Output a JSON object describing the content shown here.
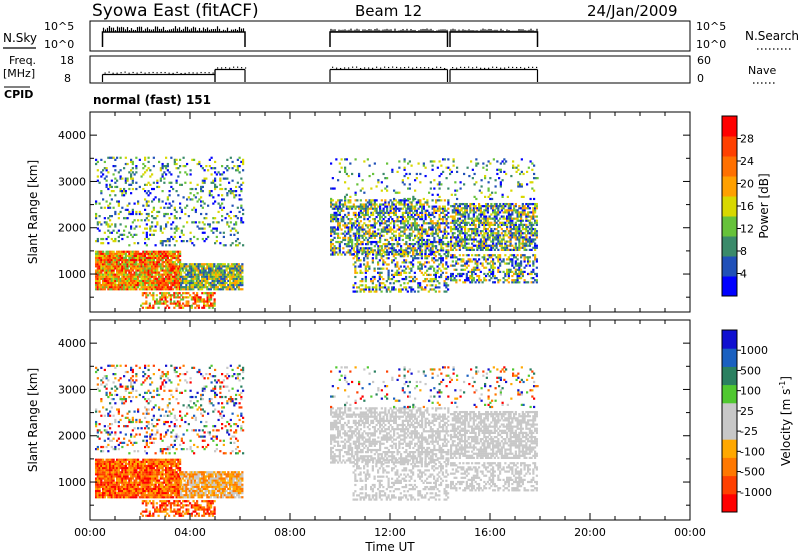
{
  "header": {
    "title": "Syowa East (fitACF)",
    "beam": "Beam 12",
    "date": "24/Jan/2009",
    "cpid_label": "CPID",
    "cpid_value": "normal (fast) 151"
  },
  "colors": {
    "power_scale": [
      "#0000ff",
      "#2050b8",
      "#3a8a6a",
      "#66c23a",
      "#d8d800",
      "#ffa000",
      "#ff7000",
      "#ff4000",
      "#ff0000"
    ],
    "velocity_scale": [
      "#ff0000",
      "#ff4000",
      "#ff7800",
      "#ffa800",
      "#c8c8c8",
      "#c8c8c8",
      "#50c830",
      "#2a8060",
      "#1a60c0",
      "#1010d0"
    ],
    "ground_scatter": "#c8c8c8"
  },
  "chart_data": [
    {
      "type": "line",
      "name": "sky-search-noise",
      "left_label": "N.Sky",
      "right_label": "N.Search",
      "left_ticks": [
        "10^5",
        "10^0"
      ],
      "right_ticks": [
        "10^5",
        "10^0"
      ],
      "on_intervals_ut": [
        [
          0.5,
          6.2
        ],
        [
          9.6,
          14.3
        ],
        [
          14.4,
          17.9
        ]
      ],
      "level": "10^5"
    },
    {
      "type": "line",
      "name": "frequency-nave",
      "left_label": "Freq.",
      "left_unit": "[MHz]",
      "right_label": "Nave",
      "left_ticks": [
        "18",
        "8"
      ],
      "right_ticks": [
        "60",
        "0"
      ],
      "freq_mhz_segments": [
        {
          "from": 0.5,
          "to": 5.0,
          "mhz": 11
        },
        {
          "from": 5.0,
          "to": 6.2,
          "mhz": 13
        },
        {
          "from": 9.6,
          "to": 14.3,
          "mhz": 13
        },
        {
          "from": 14.4,
          "to": 17.9,
          "mhz": 13
        }
      ]
    },
    {
      "type": "heatmap",
      "name": "power",
      "ylabel": "Slant Range [km]",
      "yticks": [
        "1000",
        "2000",
        "3000",
        "4000"
      ],
      "ylim": [
        180,
        4500
      ],
      "xlim": [
        0,
        24
      ],
      "colorbar_label": "Power [dB]",
      "colorbar_ticks": [
        "4",
        "8",
        "12",
        "16",
        "20",
        "24",
        "28"
      ],
      "colorbar_range": [
        0,
        32
      ]
    },
    {
      "type": "heatmap",
      "name": "velocity",
      "ylabel": "Slant Range [km]",
      "yticks": [
        "1000",
        "2000",
        "3000",
        "4000"
      ],
      "ylim": [
        180,
        4500
      ],
      "xlim": [
        0,
        24
      ],
      "xlabel": "Time UT",
      "xticks": [
        "00:00",
        "04:00",
        "08:00",
        "12:00",
        "16:00",
        "20:00",
        "00:00"
      ],
      "colorbar_label_main": "Velocity  [m s",
      "colorbar_label_sup": "-1",
      "colorbar_label_end": "]",
      "colorbar_ticks": [
        "1000",
        "500",
        "100",
        "25",
        "-25",
        "-100",
        "-500",
        "-1000"
      ]
    }
  ]
}
